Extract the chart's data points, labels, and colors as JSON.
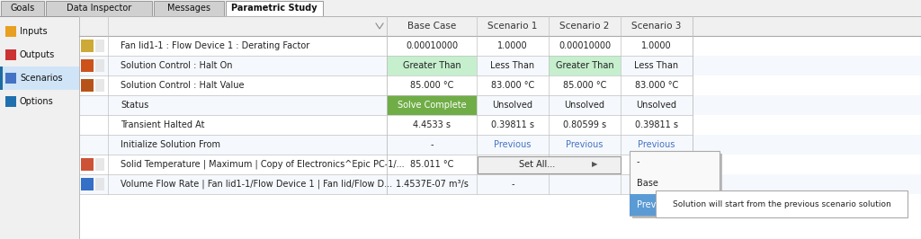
{
  "tabs": [
    "Goals",
    "Data Inspector",
    "Messages",
    "Parametric Study"
  ],
  "active_tab": "Parametric Study",
  "sidebar_items": [
    "Inputs",
    "Outputs",
    "Scenarios",
    "Options"
  ],
  "active_sidebar": "Scenarios",
  "rows": [
    {
      "label": "Fan lid1-1 : Flow Device 1 : Derating Factor",
      "values": [
        "0.00010000",
        "1.0000",
        "0.00010000",
        "1.0000"
      ],
      "has_icon": true,
      "cell_colors": [
        "#ffffff",
        "#ffffff",
        "#ffffff",
        "#ffffff"
      ],
      "text_colors": [
        "#222222",
        "#222222",
        "#222222",
        "#222222"
      ]
    },
    {
      "label": "Solution Control : Halt On",
      "values": [
        "Greater Than",
        "Less Than",
        "Greater Than",
        "Less Than"
      ],
      "has_icon": true,
      "cell_colors": [
        "#c6efce",
        "#ffffff",
        "#c6efce",
        "#ffffff"
      ],
      "text_colors": [
        "#222222",
        "#222222",
        "#222222",
        "#222222"
      ]
    },
    {
      "label": "Solution Control : Halt Value",
      "values": [
        "85.000 °C",
        "83.000 °C",
        "85.000 °C",
        "83.000 °C"
      ],
      "has_icon": true,
      "cell_colors": [
        "#ffffff",
        "#ffffff",
        "#ffffff",
        "#ffffff"
      ],
      "text_colors": [
        "#222222",
        "#222222",
        "#222222",
        "#222222"
      ]
    },
    {
      "label": "Status",
      "values": [
        "Solve Complete",
        "Unsolved",
        "Unsolved",
        "Unsolved"
      ],
      "has_icon": false,
      "cell_colors": [
        "#70ad47",
        "#ffffff",
        "#ffffff",
        "#ffffff"
      ],
      "text_colors": [
        "#ffffff",
        "#222222",
        "#222222",
        "#222222"
      ]
    },
    {
      "label": "Transient Halted At",
      "values": [
        "4.4533 s",
        "0.39811 s",
        "0.80599 s",
        "0.39811 s"
      ],
      "has_icon": false,
      "cell_colors": [
        "#ffffff",
        "#ffffff",
        "#ffffff",
        "#ffffff"
      ],
      "text_colors": [
        "#222222",
        "#222222",
        "#222222",
        "#222222"
      ]
    },
    {
      "label": "Initialize Solution From",
      "values": [
        "-",
        "Previous",
        "Previous",
        "Previous"
      ],
      "has_icon": false,
      "cell_colors": [
        "#ffffff",
        "#ffffff",
        "#ffffff",
        "#ffffff"
      ],
      "text_colors": [
        "#222222",
        "#4472c4",
        "#4472c4",
        "#4472c4"
      ]
    },
    {
      "label": "Solid Temperature | Maximum | Copy of Electronics^Epic PC-1/...",
      "values": [
        "85.011 °C",
        "-",
        "",
        ""
      ],
      "has_icon": true,
      "is_output": true,
      "cell_colors": [
        "#ffffff",
        "#ffffff",
        "#ffffff",
        "#ffffff"
      ],
      "text_colors": [
        "#222222",
        "#222222",
        "#222222",
        "#222222"
      ]
    },
    {
      "label": "Volume Flow Rate | Fan lid1-1/Flow Device 1 | Fan lid/Flow D...",
      "values": [
        "1.4537E-07 m³/s",
        "-",
        "",
        ""
      ],
      "has_icon": true,
      "is_output": true,
      "cell_colors": [
        "#ffffff",
        "#ffffff",
        "#ffffff",
        "#ffffff"
      ],
      "text_colors": [
        "#222222",
        "#222222",
        "#222222",
        "#222222"
      ]
    }
  ],
  "bg_color": "#f0f0f0",
  "panel_bg": "#ffffff",
  "header_bg": "#e8e8e8",
  "sidebar_bg": "#f0f0f0",
  "tab_active_bg": "#ffffff",
  "tab_inactive_bg": "#d0d0d0",
  "row_alt_color": "#f0f4f8",
  "row_normal_color": "#ffffff",
  "grid_color": "#c0c0c0",
  "font_size": 7.0,
  "header_font_size": 7.5
}
